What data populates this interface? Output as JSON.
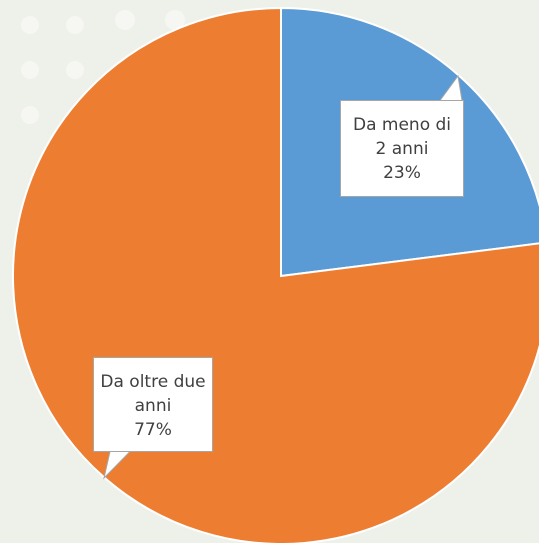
{
  "chart_data": {
    "type": "pie",
    "categories": [
      "Da meno di 2 anni",
      "Da oltre due anni"
    ],
    "values": [
      23,
      77
    ],
    "value_labels": [
      "23%",
      "77%"
    ],
    "colors": [
      "#5b9bd5",
      "#ed7d31"
    ]
  }
}
